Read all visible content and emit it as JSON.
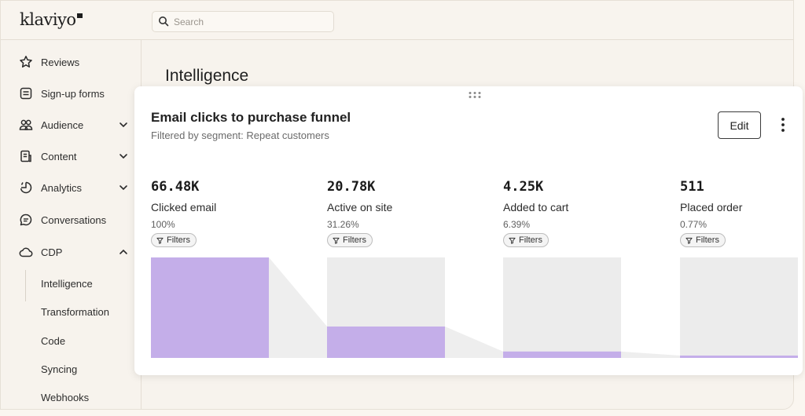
{
  "app": {
    "logo_text": "klaviyo"
  },
  "search": {
    "placeholder": "Search"
  },
  "sidebar": {
    "items": [
      {
        "label": "Reviews",
        "icon": "star-icon"
      },
      {
        "label": "Sign-up forms",
        "icon": "form-icon"
      },
      {
        "label": "Audience",
        "icon": "people-icon",
        "expandable": true,
        "expanded": false
      },
      {
        "label": "Content",
        "icon": "document-icon",
        "expandable": true,
        "expanded": false
      },
      {
        "label": "Analytics",
        "icon": "analytics-icon",
        "expandable": true,
        "expanded": false
      },
      {
        "label": "Conversations",
        "icon": "chat-icon"
      },
      {
        "label": "CDP",
        "icon": "cloud-icon",
        "expandable": true,
        "expanded": true
      }
    ],
    "sub_items": [
      "Intelligence",
      "Transformation",
      "Code",
      "Syncing",
      "Webhooks"
    ],
    "active_sub_item": "Intelligence"
  },
  "main": {
    "page_title": "Intelligence"
  },
  "card": {
    "title": "Email clicks to purchase funnel",
    "subtitle": "Filtered by segment: Repeat customers",
    "edit_label": "Edit",
    "filter_label": "Filters",
    "colors": {
      "bar": "#c4aee9",
      "track": "#ececec",
      "connector": "#eeeeee"
    },
    "stages": [
      {
        "value": "66.48K",
        "label": "Clicked email",
        "percent": "100%",
        "fraction": 1.0
      },
      {
        "value": "20.78K",
        "label": "Active on site",
        "percent": "31.26%",
        "fraction": 0.3126
      },
      {
        "value": "4.25K",
        "label": "Added to cart",
        "percent": "6.39%",
        "fraction": 0.0639
      },
      {
        "value": "511",
        "label": "Placed order",
        "percent": "0.77%",
        "fraction": 0.0077
      }
    ]
  }
}
